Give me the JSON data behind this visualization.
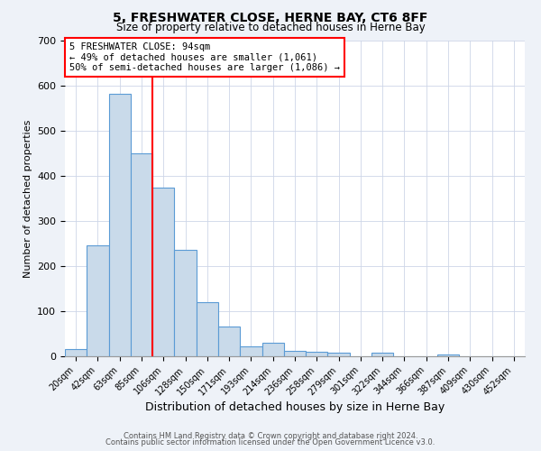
{
  "title": "5, FRESHWATER CLOSE, HERNE BAY, CT6 8FF",
  "subtitle": "Size of property relative to detached houses in Herne Bay",
  "xlabel": "Distribution of detached houses by size in Herne Bay",
  "ylabel": "Number of detached properties",
  "bar_labels": [
    "20sqm",
    "42sqm",
    "63sqm",
    "85sqm",
    "106sqm",
    "128sqm",
    "150sqm",
    "171sqm",
    "193sqm",
    "214sqm",
    "236sqm",
    "258sqm",
    "279sqm",
    "301sqm",
    "322sqm",
    "344sqm",
    "366sqm",
    "387sqm",
    "409sqm",
    "430sqm",
    "452sqm"
  ],
  "bar_values": [
    17,
    247,
    582,
    450,
    375,
    236,
    120,
    67,
    22,
    30,
    13,
    10,
    8,
    0,
    8,
    0,
    0,
    5,
    0,
    0,
    0
  ],
  "bar_color": "#c9daea",
  "bar_edge_color": "#5b9bd5",
  "ylim": [
    0,
    700
  ],
  "yticks": [
    0,
    100,
    200,
    300,
    400,
    500,
    600,
    700
  ],
  "red_line_x": 3.5,
  "annotation_title": "5 FRESHWATER CLOSE: 94sqm",
  "annotation_line1": "← 49% of detached houses are smaller (1,061)",
  "annotation_line2": "50% of semi-detached houses are larger (1,086) →",
  "footer1": "Contains HM Land Registry data © Crown copyright and database right 2024.",
  "footer2": "Contains public sector information licensed under the Open Government Licence v3.0.",
  "bg_color": "#eef2f8",
  "plot_bg_color": "#ffffff"
}
